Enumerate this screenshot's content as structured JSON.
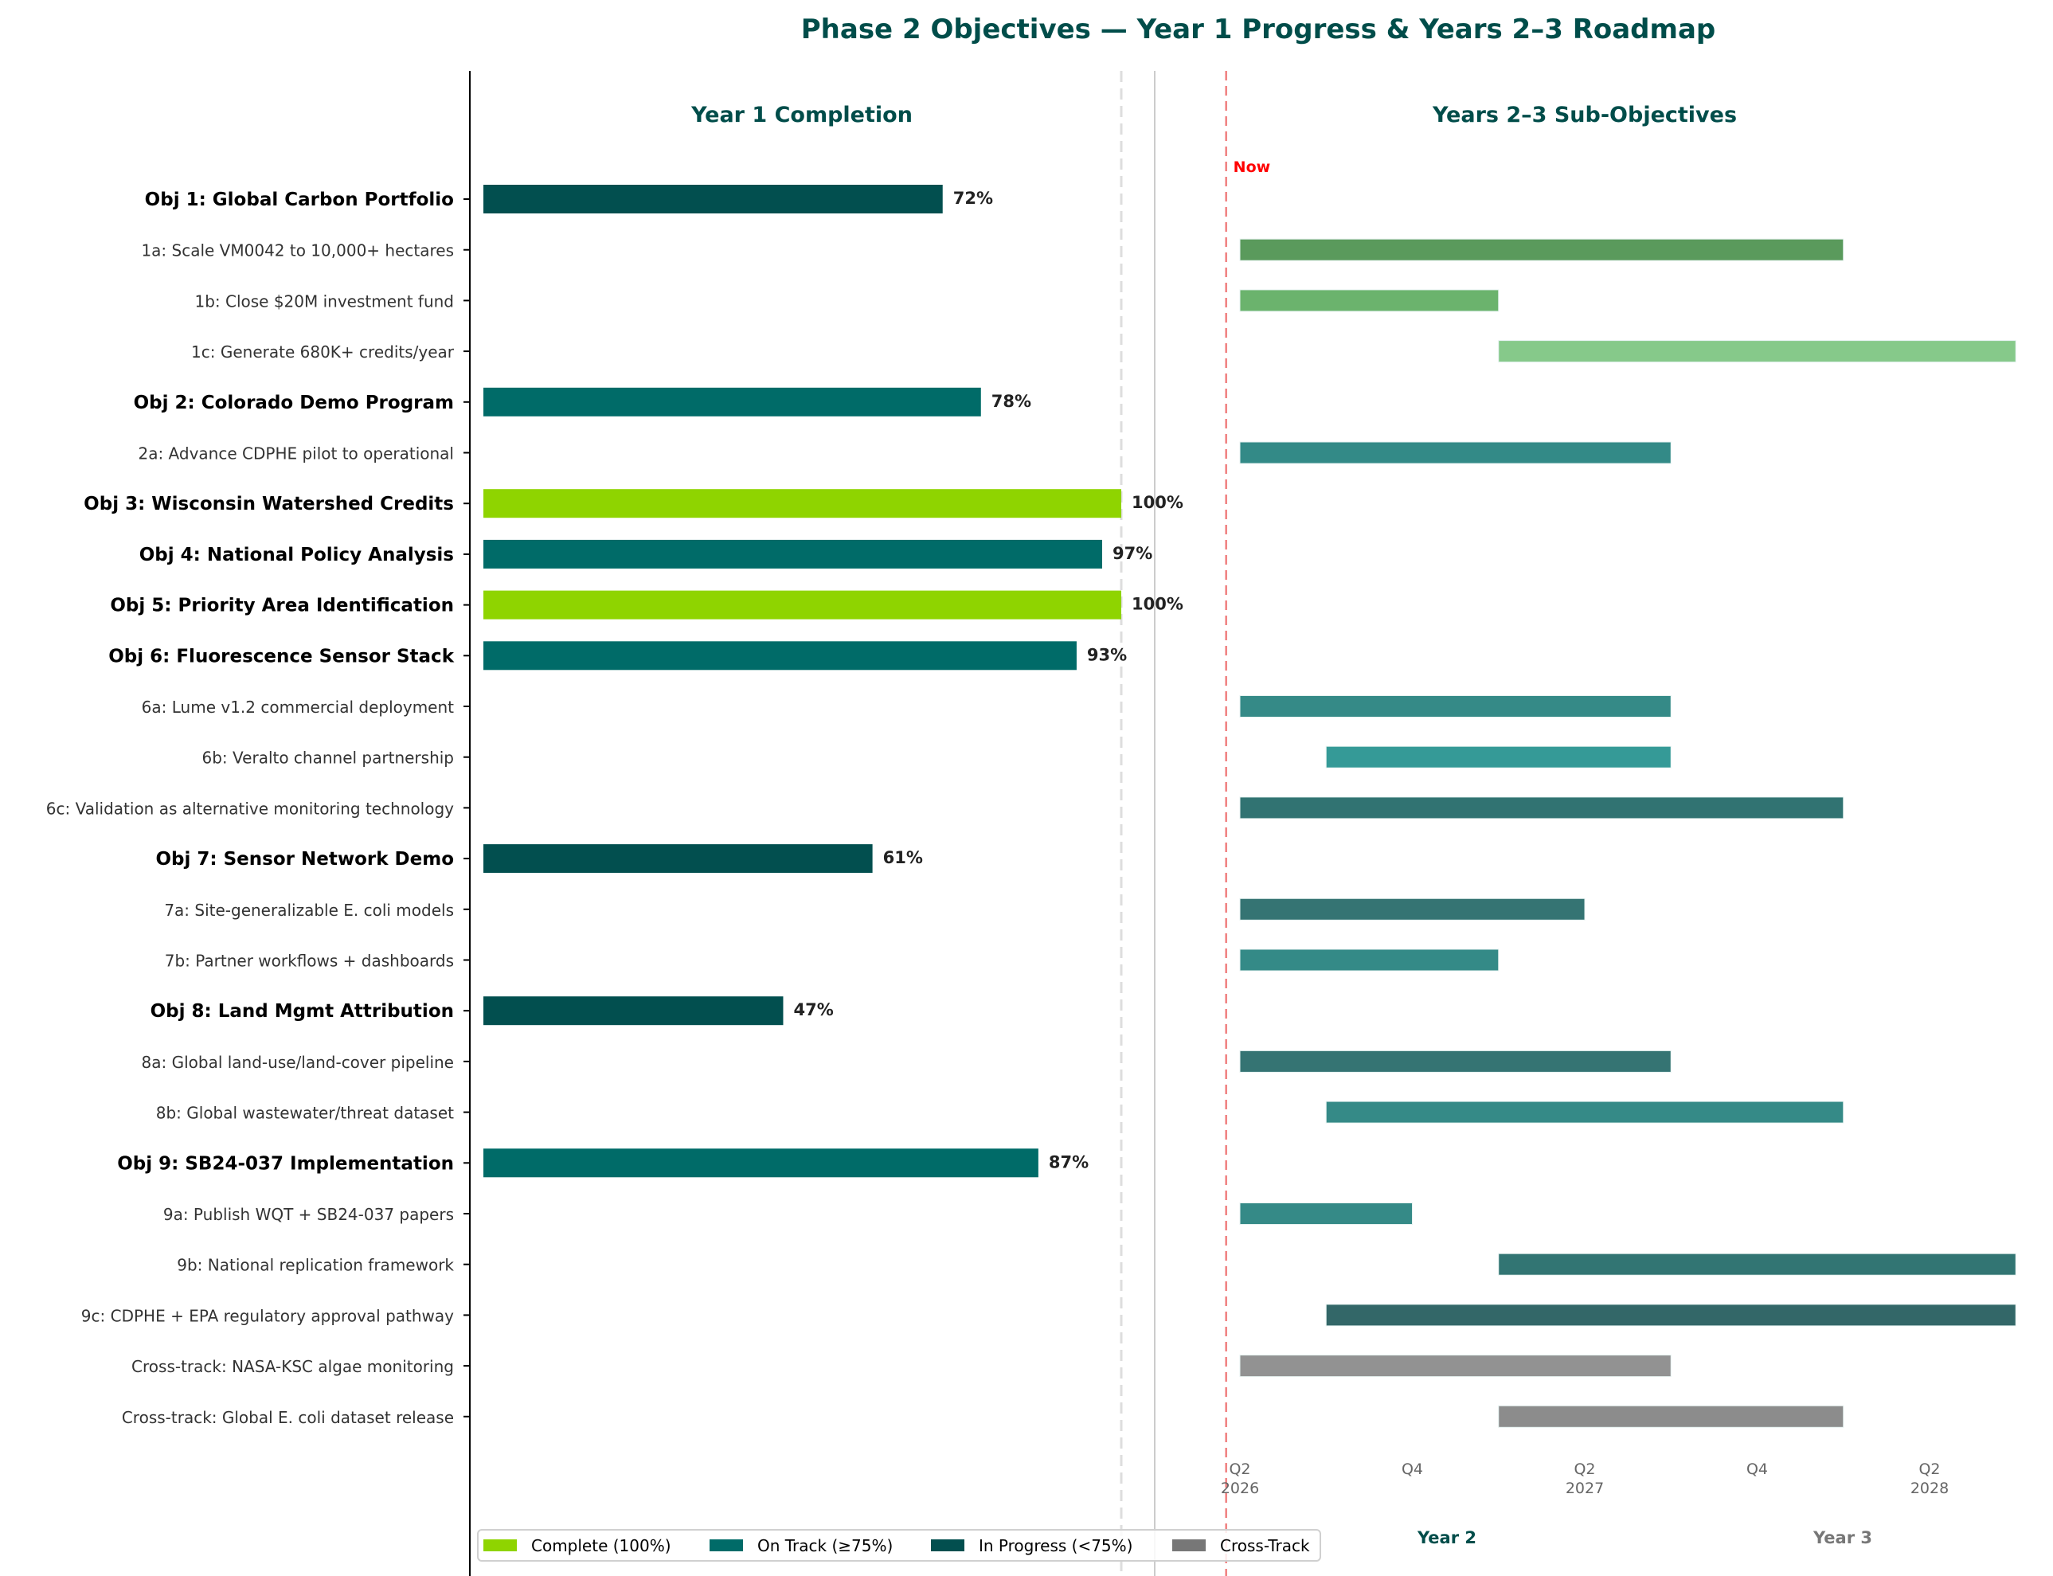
{
  "chart_data": {
    "type": "bar",
    "title": "Phase 2 Objectives — Year 1 Progress & Years 2–3 Roadmap",
    "colors": {
      "title": "#004d4a",
      "complete": "#8fd400",
      "on_track": "#006b68",
      "in_progress": "#024f4f",
      "cross_track": "#777777",
      "now_line": "#ff0000"
    },
    "rows": [
      {
        "label": "Obj 1: Global Carbon Portfolio",
        "kind": "objective"
      },
      {
        "label": "1a: Scale VM0042 to 10,000+ hectares",
        "kind": "sub"
      },
      {
        "label": "1b: Close $20M investment fund",
        "kind": "sub"
      },
      {
        "label": "1c: Generate 680K+ credits/year",
        "kind": "sub"
      },
      {
        "label": "Obj 2: Colorado Demo Program",
        "kind": "objective"
      },
      {
        "label": "2a: Advance CDPHE pilot to operational",
        "kind": "sub"
      },
      {
        "label": "Obj 3: Wisconsin Watershed Credits",
        "kind": "objective"
      },
      {
        "label": "Obj 4: National Policy Analysis",
        "kind": "objective"
      },
      {
        "label": "Obj 5: Priority Area Identification",
        "kind": "objective"
      },
      {
        "label": "Obj 6: Fluorescence Sensor Stack",
        "kind": "objective"
      },
      {
        "label": "6a: Lume v1.2 commercial deployment",
        "kind": "sub"
      },
      {
        "label": "6b: Veralto channel partnership",
        "kind": "sub"
      },
      {
        "label": "6c: Validation as alternative monitoring technology",
        "kind": "sub"
      },
      {
        "label": "Obj 7: Sensor Network Demo",
        "kind": "objective"
      },
      {
        "label": "7a: Site-generalizable E. coli models",
        "kind": "sub"
      },
      {
        "label": "7b: Partner workflows + dashboards",
        "kind": "sub"
      },
      {
        "label": "Obj 8: Land Mgmt Attribution",
        "kind": "objective"
      },
      {
        "label": "8a: Global land-use/land-cover pipeline",
        "kind": "sub"
      },
      {
        "label": "8b: Global wastewater/threat dataset",
        "kind": "sub"
      },
      {
        "label": "Obj 9: SB24-037 Implementation",
        "kind": "objective"
      },
      {
        "label": "9a: Publish WQT + SB24-037 papers",
        "kind": "sub"
      },
      {
        "label": "9b: National replication framework",
        "kind": "sub"
      },
      {
        "label": "9c: CDPHE + EPA regulatory approval pathway",
        "kind": "sub"
      },
      {
        "label": "Cross-track: NASA-KSC algae monitoring",
        "kind": "sub"
      },
      {
        "label": "Cross-track: Global E. coli dataset release",
        "kind": "sub"
      }
    ],
    "panels": [
      {
        "title": "Year 1 Completion",
        "type": "bar",
        "orientation": "horizontal",
        "unit": "%",
        "xlim": [
          -2,
          105
        ],
        "reference_line": 100,
        "bars": [
          {
            "row": 0,
            "value": 72,
            "label": "72%",
            "status": "in_progress"
          },
          {
            "row": 4,
            "value": 78,
            "label": "78%",
            "status": "on_track"
          },
          {
            "row": 6,
            "value": 100,
            "label": "100%",
            "status": "complete"
          },
          {
            "row": 7,
            "value": 97,
            "label": "97%",
            "status": "on_track"
          },
          {
            "row": 8,
            "value": 100,
            "label": "100%",
            "status": "complete"
          },
          {
            "row": 9,
            "value": 93,
            "label": "93%",
            "status": "on_track"
          },
          {
            "row": 13,
            "value": 61,
            "label": "61%",
            "status": "in_progress"
          },
          {
            "row": 16,
            "value": 47,
            "label": "47%",
            "status": "in_progress"
          },
          {
            "row": 19,
            "value": 87,
            "label": "87%",
            "status": "on_track"
          }
        ]
      },
      {
        "title": "Years 2–3 Sub-Objectives",
        "type": "gantt",
        "xlim": [
          2026.0,
          2028.5
        ],
        "now": {
          "value": 2026.21,
          "label": "Now"
        },
        "ticks": [
          {
            "value": 2026.25,
            "label": "Q2",
            "sublabel": "2026"
          },
          {
            "value": 2026.75,
            "label": "Q4",
            "sublabel": ""
          },
          {
            "value": 2027.25,
            "label": "Q2",
            "sublabel": "2027"
          },
          {
            "value": 2027.75,
            "label": "Q4",
            "sublabel": ""
          },
          {
            "value": 2028.25,
            "label": "Q2",
            "sublabel": "2028"
          }
        ],
        "year_labels": [
          {
            "label": "Year 2",
            "color": "#004d4a"
          },
          {
            "label": "Year 3",
            "color": "#777777"
          }
        ],
        "bars": [
          {
            "row": 1,
            "start": 2026.25,
            "end": 2028.0,
            "color": "#5a9a5c"
          },
          {
            "row": 2,
            "start": 2026.25,
            "end": 2027.0,
            "color": "#6bb36d"
          },
          {
            "row": 3,
            "start": 2027.0,
            "end": 2028.5,
            "color": "#86c98a"
          },
          {
            "row": 5,
            "start": 2026.25,
            "end": 2027.5,
            "color": "#338a87"
          },
          {
            "row": 10,
            "start": 2026.25,
            "end": 2027.5,
            "color": "#358a87"
          },
          {
            "row": 11,
            "start": 2026.5,
            "end": 2027.5,
            "color": "#359a97"
          },
          {
            "row": 12,
            "start": 2026.25,
            "end": 2028.0,
            "color": "#317372"
          },
          {
            "row": 14,
            "start": 2026.25,
            "end": 2027.25,
            "color": "#357473"
          },
          {
            "row": 15,
            "start": 2026.25,
            "end": 2027.0,
            "color": "#348a87"
          },
          {
            "row": 17,
            "start": 2026.25,
            "end": 2027.5,
            "color": "#357473"
          },
          {
            "row": 18,
            "start": 2026.5,
            "end": 2028.0,
            "color": "#358a87"
          },
          {
            "row": 20,
            "start": 2026.25,
            "end": 2026.75,
            "color": "#358a87"
          },
          {
            "row": 21,
            "start": 2027.0,
            "end": 2028.5,
            "color": "#327573"
          },
          {
            "row": 22,
            "start": 2026.5,
            "end": 2028.5,
            "color": "#336768"
          },
          {
            "row": 23,
            "start": 2026.25,
            "end": 2027.5,
            "color": "#929292"
          },
          {
            "row": 24,
            "start": 2027.0,
            "end": 2028.0,
            "color": "#8c8c8c"
          }
        ]
      }
    ],
    "legend": {
      "placement": "bottom-left",
      "items": [
        {
          "label": "Complete (100%)",
          "color": "#8fd400"
        },
        {
          "label": "On Track (≥75%)",
          "color": "#006b68"
        },
        {
          "label": "In Progress (<75%)",
          "color": "#024f4f"
        },
        {
          "label": "Cross-Track",
          "color": "#777777"
        }
      ]
    }
  }
}
